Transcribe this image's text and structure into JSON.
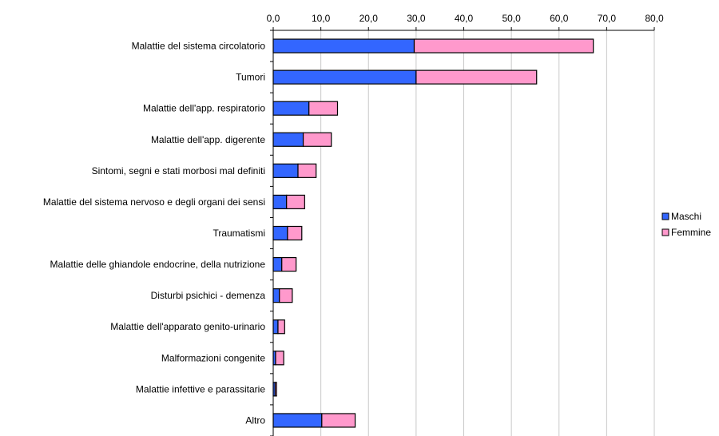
{
  "chart_data": {
    "type": "bar",
    "orientation": "horizontal",
    "stacked": true,
    "title": "",
    "xlabel": "",
    "ylabel": "",
    "xlim": [
      0,
      80
    ],
    "x_ticks": [
      {
        "value": 0,
        "label": "0,0"
      },
      {
        "value": 10,
        "label": "10,0"
      },
      {
        "value": 20,
        "label": "20,0"
      },
      {
        "value": 30,
        "label": "30,0"
      },
      {
        "value": 40,
        "label": "40,0"
      },
      {
        "value": 50,
        "label": "50,0"
      },
      {
        "value": 60,
        "label": "60,0"
      },
      {
        "value": 70,
        "label": "70,0"
      },
      {
        "value": 80,
        "label": "80,0"
      }
    ],
    "x_axis_position": "top",
    "grid": "vertical",
    "legend_position": "right",
    "categories": [
      "Malattie del sistema circolatorio",
      "Tumori",
      "Malattie dell'app. respiratorio",
      "Malattie dell'app. digerente",
      "Sintomi, segni e stati morbosi mal definiti",
      "Malattie del sistema nervoso e degli organi dei sensi",
      "Traumatismi",
      "Malattie delle ghiandole endocrine, della nutrizione",
      "Disturbi psichici - demenza",
      "Malattie dell'apparato genito-urinario",
      "Malformazioni congenite",
      "Malattie infettive e parassitarie",
      "Altro"
    ],
    "series": [
      {
        "name": "Maschi",
        "color": "#3366FF",
        "values": [
          29.6,
          30.0,
          7.5,
          6.3,
          5.2,
          2.8,
          3.0,
          1.8,
          1.3,
          1.0,
          0.5,
          0.4,
          10.2
        ]
      },
      {
        "name": "Femmine",
        "color": "#FF99CC",
        "values": [
          37.6,
          25.3,
          6.0,
          5.9,
          3.8,
          3.8,
          3.0,
          3.0,
          2.7,
          1.4,
          1.7,
          0.3,
          7.0
        ]
      }
    ]
  }
}
